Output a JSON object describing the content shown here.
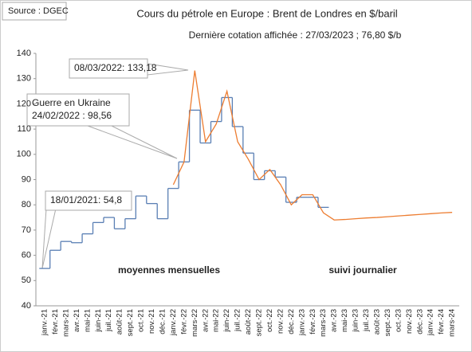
{
  "chart_data": {
    "type": "line",
    "source": "Source : DGEC",
    "title": "Cours du pétrole en Europe : Brent de Londres en $/baril",
    "subtitle": "Dernière cotation affichée : 27/03/2023 ; 76,80 $/b",
    "categories": [
      "janv.-21",
      "févr.-21",
      "mars-21",
      "avr.-21",
      "mai-21",
      "juin-21",
      "juil.-21",
      "août-21",
      "sept.-21",
      "oct.-21",
      "nov.-21",
      "déc.-21",
      "janv.-22",
      "févr.-22",
      "mars-22",
      "avr.-22",
      "mai-22",
      "juin-22",
      "juil.-22",
      "août-22",
      "sept.-22",
      "oct.-22",
      "nov.-22",
      "déc.-22",
      "janv.-23",
      "févr.-23",
      "mars-23",
      "avr.-23",
      "mai-23",
      "juin-23",
      "juil.-23",
      "août-23",
      "sept.-23",
      "oct.-23",
      "nov.-23",
      "déc.-23",
      "janv.-24",
      "févr.-24",
      "mars-24"
    ],
    "series": [
      {
        "name": "moyennes mensuelles",
        "color": "#5a7fb4",
        "style": "step",
        "values": [
          54.8,
          62,
          65.5,
          65,
          68.5,
          73,
          75,
          70.5,
          74.5,
          83.5,
          80.5,
          74.5,
          86.5,
          97,
          117.5,
          104.5,
          113,
          122.5,
          111,
          100.5,
          90,
          93.5,
          91,
          81,
          83,
          83,
          79,
          null,
          null,
          null,
          null,
          null,
          null,
          null,
          null,
          null,
          null,
          null,
          null
        ]
      },
      {
        "name": "suivi journalier",
        "color": "#ed7d31",
        "style": "line",
        "values": [
          null,
          null,
          null,
          null,
          null,
          null,
          null,
          null,
          null,
          null,
          null,
          null,
          88,
          97,
          133.18,
          105,
          112,
          125,
          105,
          98,
          90,
          94,
          88,
          80,
          84,
          84,
          76.8,
          74,
          74.2,
          74.5,
          74.8,
          75,
          75.3,
          75.6,
          75.9,
          76.2,
          76.5,
          76.8,
          77
        ]
      }
    ],
    "callouts": [
      [
        "08/03/2022: 133,18"
      ],
      [
        "Guerre en Ukraine",
        "24/02/2022 : 98,56"
      ],
      [
        "18/01/2021: 54,8"
      ]
    ],
    "ylim": [
      40,
      140
    ],
    "yticks": [
      40,
      50,
      60,
      70,
      80,
      90,
      100,
      110,
      120,
      130,
      140
    ],
    "grid": false
  }
}
